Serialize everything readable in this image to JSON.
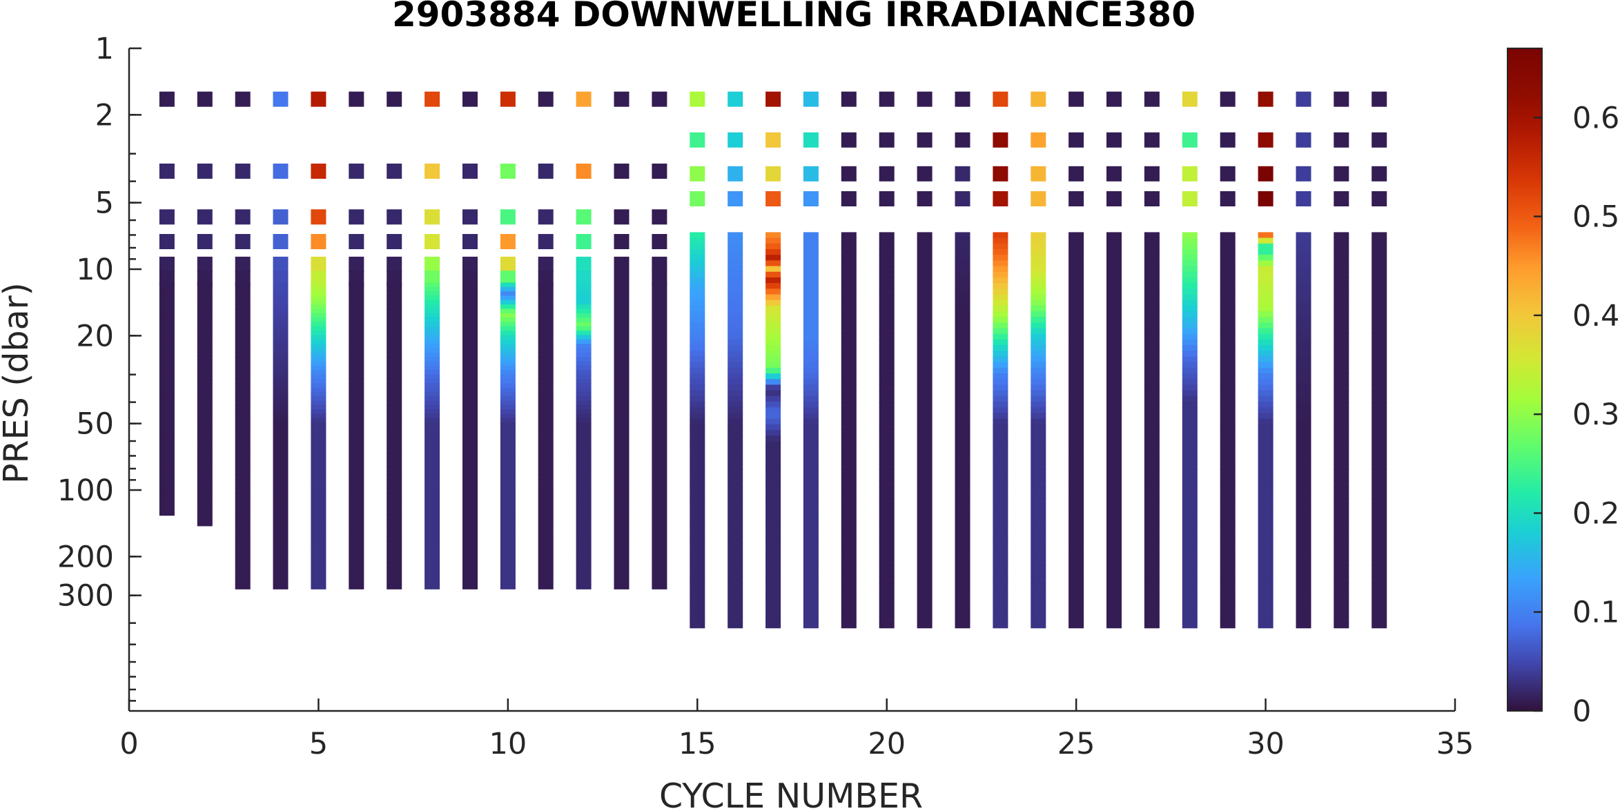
{
  "chart_data": {
    "type": "scatter",
    "title": "2903884  DOWNWELLING IRRADIANCE380",
    "xlabel": "CYCLE NUMBER",
    "ylabel": "PRES (dbar)",
    "xlim": [
      0,
      35
    ],
    "ylim": [
      1,
      1000
    ],
    "y_scale": "log",
    "y_reversed": true,
    "grid": false,
    "x_ticks": [
      0,
      5,
      10,
      15,
      20,
      25,
      30,
      35
    ],
    "x_tick_labels": [
      "0",
      "5",
      "10",
      "15",
      "20",
      "25",
      "30",
      "35"
    ],
    "y_ticks": [
      1,
      2,
      5,
      10,
      20,
      50,
      100,
      200,
      300
    ],
    "y_tick_labels": [
      "1",
      "2",
      "5",
      "10",
      "20",
      "50",
      "100",
      "200",
      "300"
    ],
    "colorbar": {
      "colormap": "turbo",
      "clim": [
        0,
        0.67
      ],
      "ticks": [
        0,
        0.1,
        0.2,
        0.3,
        0.4,
        0.5,
        0.6
      ],
      "tick_labels": [
        "0",
        "0.1",
        "0.2",
        "0.3",
        "0.4",
        "0.5",
        "0.6"
      ]
    },
    "profiles": [
      {
        "cycle": 1,
        "max_pres": 130,
        "near_surface": [
          0.01,
          0.02,
          0.02,
          0.02
        ],
        "profile": [
          [
            6,
            0.02
          ],
          [
            12,
            0.01
          ]
        ]
      },
      {
        "cycle": 2,
        "max_pres": 145,
        "near_surface": [
          0.01,
          0.02,
          0.02,
          0.02
        ],
        "profile": [
          [
            6,
            0.02
          ],
          [
            12,
            0.01
          ]
        ]
      },
      {
        "cycle": 3,
        "max_pres": 280,
        "near_surface": [
          0.01,
          0.02,
          0.02,
          0.02
        ],
        "profile": [
          [
            6,
            0.02
          ],
          [
            12,
            0.01
          ]
        ]
      },
      {
        "cycle": 4,
        "max_pres": 280,
        "near_surface": [
          0.09,
          0.08,
          0.07,
          0.07
        ],
        "profile": [
          [
            6,
            0.07
          ],
          [
            12,
            0.05
          ],
          [
            25,
            0.03
          ],
          [
            50,
            0.01
          ]
        ]
      },
      {
        "cycle": 5,
        "max_pres": 280,
        "near_surface": [
          0.58,
          0.56,
          0.52,
          0.46
        ],
        "profile": [
          [
            7,
            0.42
          ],
          [
            10,
            0.36
          ],
          [
            14,
            0.3
          ],
          [
            20,
            0.2
          ],
          [
            30,
            0.1
          ],
          [
            50,
            0.03
          ]
        ]
      },
      {
        "cycle": 6,
        "max_pres": 280,
        "near_surface": [
          0.01,
          0.02,
          0.02,
          0.02
        ],
        "profile": [
          [
            6,
            0.02
          ],
          [
            12,
            0.01
          ]
        ]
      },
      {
        "cycle": 7,
        "max_pres": 280,
        "near_surface": [
          0.01,
          0.02,
          0.02,
          0.02
        ],
        "profile": [
          [
            6,
            0.02
          ],
          [
            12,
            0.01
          ]
        ]
      },
      {
        "cycle": 8,
        "max_pres": 280,
        "near_surface": [
          0.52,
          0.4,
          0.37,
          0.36
        ],
        "profile": [
          [
            7,
            0.34
          ],
          [
            10,
            0.3
          ],
          [
            14,
            0.22
          ],
          [
            20,
            0.15
          ],
          [
            30,
            0.08
          ],
          [
            50,
            0.03
          ]
        ]
      },
      {
        "cycle": 9,
        "max_pres": 280,
        "near_surface": [
          0.01,
          0.02,
          0.02,
          0.02
        ],
        "profile": [
          [
            6,
            0.02
          ],
          [
            12,
            0.01
          ]
        ]
      },
      {
        "cycle": 10,
        "max_pres": 280,
        "near_surface": [
          0.55,
          0.28,
          0.25,
          0.45
        ],
        "profile": [
          [
            7,
            0.45
          ],
          [
            10,
            0.36
          ],
          [
            13,
            0.1
          ],
          [
            16,
            0.3
          ],
          [
            20,
            0.2
          ],
          [
            30,
            0.1
          ],
          [
            50,
            0.03
          ]
        ]
      },
      {
        "cycle": 11,
        "max_pres": 280,
        "near_surface": [
          0.01,
          0.02,
          0.02,
          0.02
        ],
        "profile": [
          [
            6,
            0.02
          ],
          [
            12,
            0.01
          ]
        ]
      },
      {
        "cycle": 12,
        "max_pres": 280,
        "near_surface": [
          0.44,
          0.46,
          0.26,
          0.24
        ],
        "profile": [
          [
            7,
            0.22
          ],
          [
            10,
            0.2
          ],
          [
            14,
            0.18
          ],
          [
            18,
            0.28
          ],
          [
            22,
            0.1
          ],
          [
            30,
            0.06
          ],
          [
            50,
            0.02
          ]
        ]
      },
      {
        "cycle": 13,
        "max_pres": 280,
        "near_surface": [
          0.01,
          0.01,
          0.01,
          0.01
        ],
        "profile": [
          [
            5.5,
            0.01
          ],
          [
            20,
            0.01
          ]
        ]
      },
      {
        "cycle": 14,
        "max_pres": 280,
        "near_surface": [
          0.01,
          0.01,
          0.01,
          0.01
        ],
        "profile": [
          [
            5.5,
            0.01
          ],
          [
            20,
            0.01
          ]
        ]
      },
      {
        "cycle": 15,
        "max_pres": 420,
        "near_surface": [
          0.32,
          0.24,
          0.3,
          0.28
        ],
        "profile": [
          [
            5.5,
            0.26
          ],
          [
            8,
            0.2
          ],
          [
            12,
            0.14
          ],
          [
            20,
            0.1
          ],
          [
            30,
            0.06
          ],
          [
            50,
            0.02
          ]
        ]
      },
      {
        "cycle": 16,
        "max_pres": 420,
        "near_surface": [
          0.18,
          0.18,
          0.15,
          0.12
        ],
        "profile": [
          [
            5.5,
            0.12
          ],
          [
            10,
            0.1
          ],
          [
            20,
            0.08
          ],
          [
            30,
            0.05
          ],
          [
            50,
            0.02
          ]
        ]
      },
      {
        "cycle": 17,
        "max_pres": 420,
        "near_surface": [
          0.6,
          0.4,
          0.38,
          0.5
        ],
        "profile": [
          [
            6,
            0.42
          ],
          [
            8,
            0.5
          ],
          [
            9,
            0.58
          ],
          [
            10,
            0.4
          ],
          [
            11,
            0.58
          ],
          [
            13,
            0.46
          ],
          [
            15,
            0.36
          ],
          [
            20,
            0.32
          ],
          [
            28,
            0.28
          ],
          [
            35,
            0.02
          ],
          [
            45,
            0.08
          ],
          [
            60,
            0.02
          ]
        ]
      },
      {
        "cycle": 18,
        "max_pres": 420,
        "near_surface": [
          0.16,
          0.2,
          0.16,
          0.12
        ],
        "profile": [
          [
            5.5,
            0.1
          ],
          [
            20,
            0.1
          ],
          [
            30,
            0.08
          ],
          [
            50,
            0.03
          ]
        ]
      },
      {
        "cycle": 19,
        "max_pres": 420,
        "near_surface": [
          0.01,
          0.01,
          0.01,
          0.01
        ],
        "profile": [
          [
            5.5,
            0.01
          ],
          [
            20,
            0.01
          ]
        ]
      },
      {
        "cycle": 20,
        "max_pres": 420,
        "near_surface": [
          0.01,
          0.01,
          0.01,
          0.01
        ],
        "profile": [
          [
            5.5,
            0.01
          ],
          [
            20,
            0.01
          ]
        ]
      },
      {
        "cycle": 21,
        "max_pres": 420,
        "near_surface": [
          0.01,
          0.01,
          0.01,
          0.01
        ],
        "profile": [
          [
            5.5,
            0.01
          ],
          [
            20,
            0.01
          ]
        ]
      },
      {
        "cycle": 22,
        "max_pres": 420,
        "near_surface": [
          0.01,
          0.01,
          0.02,
          0.02
        ],
        "profile": [
          [
            6,
            0.02
          ],
          [
            15,
            0.01
          ]
        ]
      },
      {
        "cycle": 23,
        "max_pres": 420,
        "near_surface": [
          0.52,
          0.63,
          0.63,
          0.6
        ],
        "profile": [
          [
            6,
            0.56
          ],
          [
            8,
            0.5
          ],
          [
            10,
            0.45
          ],
          [
            13,
            0.38
          ],
          [
            17,
            0.3
          ],
          [
            22,
            0.2
          ],
          [
            30,
            0.1
          ],
          [
            50,
            0.03
          ]
        ]
      },
      {
        "cycle": 24,
        "max_pres": 420,
        "near_surface": [
          0.42,
          0.44,
          0.42,
          0.42
        ],
        "profile": [
          [
            6,
            0.4
          ],
          [
            10,
            0.36
          ],
          [
            14,
            0.3
          ],
          [
            20,
            0.18
          ],
          [
            30,
            0.1
          ],
          [
            50,
            0.03
          ]
        ]
      },
      {
        "cycle": 25,
        "max_pres": 420,
        "near_surface": [
          0.01,
          0.01,
          0.01,
          0.01
        ],
        "profile": [
          [
            5.5,
            0.01
          ],
          [
            20,
            0.01
          ]
        ]
      },
      {
        "cycle": 26,
        "max_pres": 420,
        "near_surface": [
          0.01,
          0.01,
          0.01,
          0.01
        ],
        "profile": [
          [
            5.5,
            0.01
          ],
          [
            20,
            0.01
          ]
        ]
      },
      {
        "cycle": 27,
        "max_pres": 420,
        "near_surface": [
          0.01,
          0.01,
          0.01,
          0.01
        ],
        "profile": [
          [
            5.5,
            0.01
          ],
          [
            20,
            0.01
          ]
        ]
      },
      {
        "cycle": 28,
        "max_pres": 420,
        "near_surface": [
          0.38,
          0.24,
          0.34,
          0.34
        ],
        "profile": [
          [
            6,
            0.32
          ],
          [
            8,
            0.28
          ],
          [
            12,
            0.22
          ],
          [
            18,
            0.15
          ],
          [
            25,
            0.08
          ],
          [
            40,
            0.03
          ]
        ]
      },
      {
        "cycle": 29,
        "max_pres": 420,
        "near_surface": [
          0.01,
          0.01,
          0.01,
          0.01
        ],
        "profile": [
          [
            5.5,
            0.01
          ],
          [
            20,
            0.01
          ]
        ]
      },
      {
        "cycle": 30,
        "max_pres": 420,
        "near_surface": [
          0.62,
          0.63,
          0.67,
          0.67
        ],
        "profile": [
          [
            6,
            0.6
          ],
          [
            7,
            0.48
          ],
          [
            8,
            0.2
          ],
          [
            10,
            0.35
          ],
          [
            15,
            0.32
          ],
          [
            20,
            0.22
          ],
          [
            30,
            0.1
          ],
          [
            50,
            0.03
          ]
        ]
      },
      {
        "cycle": 31,
        "max_pres": 420,
        "near_surface": [
          0.04,
          0.04,
          0.04,
          0.04
        ],
        "profile": [
          [
            6,
            0.04
          ],
          [
            20,
            0.02
          ],
          [
            50,
            0.01
          ]
        ]
      },
      {
        "cycle": 32,
        "max_pres": 420,
        "near_surface": [
          0.01,
          0.01,
          0.01,
          0.01
        ],
        "profile": [
          [
            5.5,
            0.01
          ],
          [
            20,
            0.01
          ]
        ]
      },
      {
        "cycle": 33,
        "max_pres": 420,
        "near_surface": [
          0.01,
          0.01,
          0.01,
          0.01
        ],
        "profile": [
          [
            5.5,
            0.01
          ],
          [
            20,
            0.01
          ]
        ]
      }
    ]
  }
}
